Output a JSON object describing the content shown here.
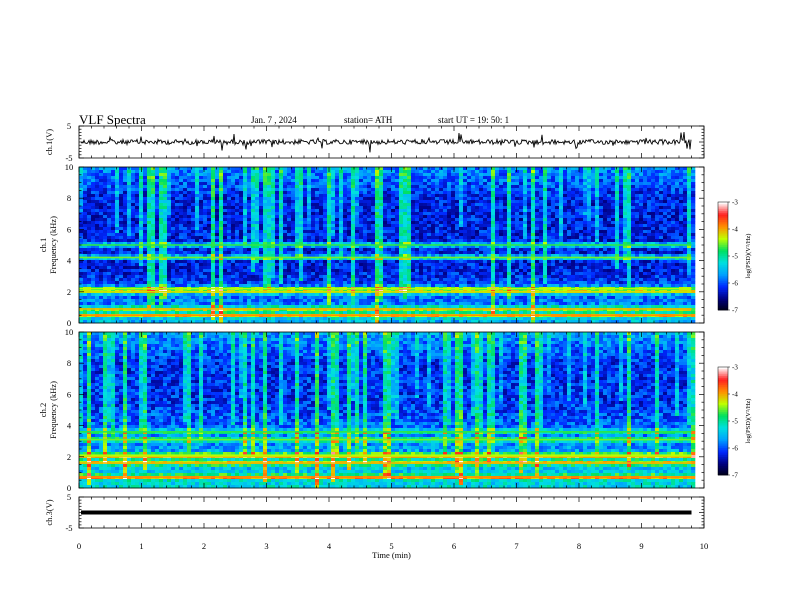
{
  "header": {
    "title": "VLF  Spectra",
    "date": "Jan.  7  , 2024",
    "station": "station= ATH",
    "start_ut": "start  UT  =    19: 50: 1"
  },
  "chart_data": [
    {
      "type": "line",
      "panel": "ch1-waveform",
      "ylabel": "ch.1(V)",
      "ylim": [
        -5,
        5
      ],
      "yticks": [
        "5",
        "-5"
      ],
      "xlim": [
        0,
        10
      ],
      "baseline": 0,
      "trace_color": "#000000"
    },
    {
      "type": "heatmap",
      "panel": "ch1-spectrogram",
      "ylabel_channel": "ch.1",
      "ylabel": "Frequency  (kHz)",
      "ylim": [
        0,
        10
      ],
      "yticks": [
        "0",
        "2",
        "4",
        "6",
        "8",
        "10"
      ],
      "xlim": [
        0,
        10
      ],
      "data_end_min": 9.8,
      "strong_bands_khz": [
        0.5,
        0.9,
        2.0,
        2.2,
        4.2,
        5.0
      ],
      "colorbar": {
        "label": "log(PSD)(V²/Hz)",
        "range": [
          -7,
          -3
        ],
        "ticks": [
          "-3",
          "-4",
          "-5",
          "-6",
          "-7"
        ]
      }
    },
    {
      "type": "heatmap",
      "panel": "ch2-spectrogram",
      "ylabel_channel": "ch.2",
      "ylabel": "Frequency  (kHz)",
      "ylim": [
        0,
        10
      ],
      "yticks": [
        "0",
        "2",
        "4",
        "6",
        "8",
        "10"
      ],
      "xlim": [
        0,
        10
      ],
      "data_end_min": 9.8,
      "strong_bands_khz": [
        0.7,
        1.6,
        2.0,
        2.1,
        3.1,
        3.6
      ],
      "colorbar": {
        "label": "log(PSD)(V²/Hz)",
        "range": [
          -7,
          -3
        ],
        "ticks": [
          "-3",
          "-4",
          "-5",
          "-6",
          "-7"
        ]
      }
    },
    {
      "type": "line",
      "panel": "ch3-waveform",
      "ylabel": "ch.3(V)",
      "ylim": [
        -5,
        5
      ],
      "yticks": [
        "5",
        "-5"
      ],
      "xlim": [
        0,
        10
      ],
      "baseline": 0,
      "trace_color": "#000000"
    }
  ],
  "x_axis": {
    "label": "Time  (min)",
    "ticks": [
      "0",
      "1",
      "2",
      "3",
      "4",
      "5",
      "6",
      "7",
      "8",
      "9",
      "10"
    ]
  },
  "colors": {
    "colormap": [
      "#000014",
      "#000080",
      "#0028ff",
      "#00a0ff",
      "#00e0e0",
      "#00e060",
      "#c0ff00",
      "#ff9000",
      "#ff2020",
      "#ffffff"
    ]
  }
}
